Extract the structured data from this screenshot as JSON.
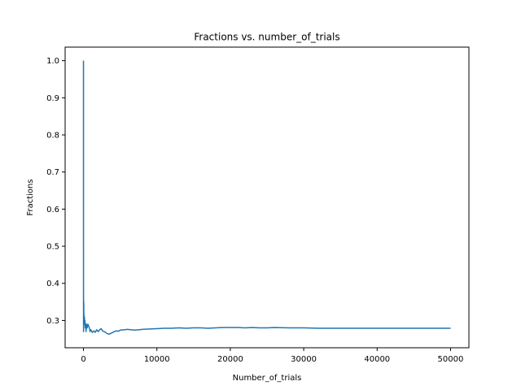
{
  "chart_data": {
    "type": "line",
    "title": "Fractions vs. number_of_trials",
    "xlabel": "Number_of_trials",
    "ylabel": "Fractions",
    "xlim": [
      -2500,
      52500
    ],
    "ylim": [
      0.2265,
      1.0365
    ],
    "grid": false,
    "line_color": "#1f77b4",
    "xticks": [
      0,
      10000,
      20000,
      30000,
      40000,
      50000
    ],
    "xtick_labels": [
      "0",
      "10000",
      "20000",
      "30000",
      "40000",
      "50000"
    ],
    "yticks": [
      0.3,
      0.4,
      0.5,
      0.6,
      0.7,
      0.8,
      0.9,
      1.0
    ],
    "ytick_labels": [
      "0.3",
      "0.4",
      "0.5",
      "0.6",
      "0.7",
      "0.8",
      "0.9",
      "1.0"
    ],
    "series": [
      {
        "x": [
          1,
          2,
          3,
          5,
          8,
          12,
          15,
          20,
          25,
          30,
          40,
          50,
          60,
          80,
          100,
          130,
          160,
          200,
          250,
          300,
          350,
          400,
          500,
          600,
          700,
          800,
          900,
          1000,
          1200,
          1400,
          1600,
          1800,
          2000,
          2200,
          2400,
          2600,
          2800,
          3000,
          3200,
          3500,
          3800,
          4000,
          4200,
          4500,
          4800,
          5000,
          5500,
          6000,
          6500,
          7000,
          7500,
          8000,
          9000,
          10000,
          11000,
          12000,
          13000,
          14000,
          15000,
          16000,
          17000,
          18000,
          19000,
          20000,
          21000,
          22000,
          23000,
          24000,
          25000,
          26000,
          28000,
          30000,
          32000,
          34000,
          36000,
          38000,
          40000,
          42000,
          44000,
          46000,
          48000,
          50000
        ],
        "y": [
          1.0,
          0.5,
          0.33,
          0.4,
          0.27,
          0.36,
          0.31,
          0.33,
          0.28,
          0.3,
          0.35,
          0.3,
          0.32,
          0.3,
          0.29,
          0.31,
          0.29,
          0.3,
          0.28,
          0.29,
          0.27,
          0.29,
          0.28,
          0.29,
          0.285,
          0.28,
          0.27,
          0.275,
          0.268,
          0.272,
          0.268,
          0.275,
          0.27,
          0.275,
          0.278,
          0.272,
          0.27,
          0.268,
          0.265,
          0.263,
          0.266,
          0.268,
          0.27,
          0.272,
          0.271,
          0.274,
          0.275,
          0.276,
          0.275,
          0.274,
          0.275,
          0.276,
          0.277,
          0.278,
          0.279,
          0.279,
          0.28,
          0.279,
          0.28,
          0.28,
          0.279,
          0.28,
          0.281,
          0.281,
          0.281,
          0.28,
          0.281,
          0.28,
          0.28,
          0.281,
          0.28,
          0.28,
          0.279,
          0.279,
          0.279,
          0.279,
          0.279,
          0.279,
          0.279,
          0.279,
          0.279,
          0.279
        ]
      }
    ]
  }
}
